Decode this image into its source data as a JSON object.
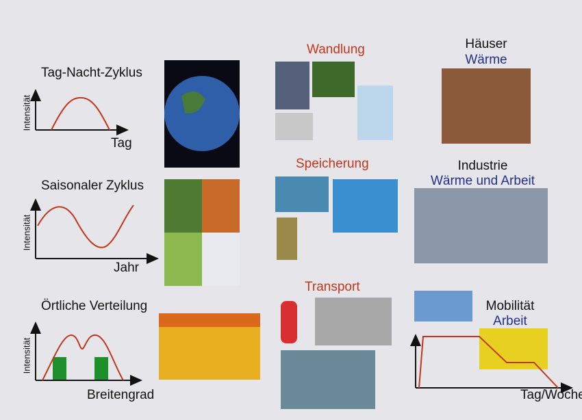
{
  "left": [
    {
      "title": "Tag-Nacht-Zyklus",
      "y_label": "Intensität",
      "x_label": "Tag"
    },
    {
      "title": "Saisonaler Zyklus",
      "y_label": "Intensität",
      "x_label": "Jahr"
    },
    {
      "title": "Örtliche Verteilung",
      "y_label": "Intensität",
      "x_label": "Breitengrad"
    }
  ],
  "middle": [
    "Wandlung",
    "Speicherung",
    "Transport"
  ],
  "right": [
    {
      "title": "Häuser",
      "subtitle": "Wärme"
    },
    {
      "title": "Industrie",
      "subtitle": "Wärme und Arbeit"
    },
    {
      "title": "Mobilität",
      "subtitle": "Arbeit"
    }
  ],
  "right_x_label": "Tag/Woche"
}
